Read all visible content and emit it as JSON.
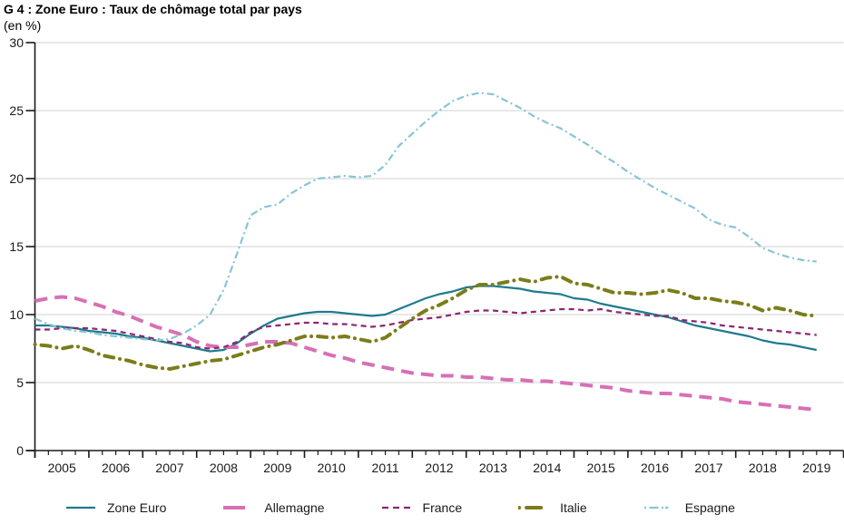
{
  "title": "G 4 : Zone Euro : Taux de chômage total par pays",
  "subtitle": "(en %)",
  "chart_data": {
    "type": "line",
    "title": "G 4 : Zone Euro : Taux de chômage total par pays",
    "ylabel": "(en %)",
    "ylim": [
      0,
      30
    ],
    "y_ticks": [
      0,
      5,
      10,
      15,
      20,
      25,
      30
    ],
    "x_range": [
      2005,
      2020
    ],
    "x_tick_years": [
      2005,
      2006,
      2007,
      2008,
      2009,
      2010,
      2011,
      2012,
      2013,
      2014,
      2015,
      2016,
      2017,
      2018,
      2019
    ],
    "x_minor_tick_step": 0.25,
    "x_start": 2005.0,
    "x_step": 0.25,
    "grid": true,
    "legend_position": "bottom",
    "colors": {
      "grid": "#d9d9d9",
      "axis": "#1a1a1a",
      "zone_euro": "#1e7b8d",
      "allemagne": "#d770b5",
      "france": "#8f2472",
      "italie": "#7c7c1a",
      "espagne": "#89c4d8"
    },
    "series": [
      {
        "name": "Zone Euro",
        "color": "#1e7b8d",
        "style": "solid",
        "width": 2.2,
        "values": [
          9.2,
          9.2,
          9.1,
          9.0,
          8.8,
          8.7,
          8.6,
          8.4,
          8.3,
          8.1,
          7.9,
          7.7,
          7.5,
          7.3,
          7.4,
          7.9,
          8.6,
          9.2,
          9.7,
          9.9,
          10.1,
          10.2,
          10.2,
          10.1,
          10.0,
          9.9,
          10.0,
          10.4,
          10.8,
          11.2,
          11.5,
          11.7,
          12.0,
          12.1,
          12.1,
          12.0,
          11.9,
          11.7,
          11.6,
          11.5,
          11.2,
          11.1,
          10.8,
          10.6,
          10.4,
          10.2,
          10.0,
          9.8,
          9.5,
          9.2,
          9.0,
          8.8,
          8.6,
          8.4,
          8.1,
          7.9,
          7.8,
          7.6,
          7.4
        ]
      },
      {
        "name": "Allemagne",
        "color": "#d770b5",
        "style": "long-dash",
        "width": 4,
        "values": [
          11.0,
          11.2,
          11.3,
          11.2,
          10.9,
          10.6,
          10.2,
          9.9,
          9.5,
          9.1,
          8.8,
          8.5,
          8.0,
          7.7,
          7.6,
          7.6,
          7.8,
          8.0,
          8.0,
          7.9,
          7.6,
          7.3,
          7.0,
          6.8,
          6.5,
          6.3,
          6.1,
          5.9,
          5.7,
          5.6,
          5.5,
          5.5,
          5.4,
          5.4,
          5.3,
          5.2,
          5.2,
          5.1,
          5.1,
          5.0,
          4.9,
          4.8,
          4.7,
          4.6,
          4.4,
          4.3,
          4.2,
          4.2,
          4.1,
          4.0,
          3.9,
          3.8,
          3.6,
          3.5,
          3.4,
          3.3,
          3.2,
          3.1,
          3.0
        ]
      },
      {
        "name": "France",
        "color": "#8f2472",
        "style": "short-dash",
        "width": 2.2,
        "values": [
          8.9,
          8.9,
          9.0,
          9.0,
          9.0,
          8.9,
          8.8,
          8.6,
          8.4,
          8.2,
          8.0,
          7.9,
          7.6,
          7.5,
          7.6,
          8.0,
          8.7,
          9.1,
          9.2,
          9.3,
          9.4,
          9.4,
          9.3,
          9.3,
          9.2,
          9.1,
          9.2,
          9.4,
          9.6,
          9.7,
          9.8,
          10.0,
          10.2,
          10.3,
          10.3,
          10.2,
          10.1,
          10.2,
          10.3,
          10.4,
          10.4,
          10.3,
          10.4,
          10.2,
          10.1,
          10.0,
          9.9,
          9.9,
          9.6,
          9.5,
          9.4,
          9.2,
          9.1,
          9.0,
          8.9,
          8.8,
          8.7,
          8.6,
          8.5
        ]
      },
      {
        "name": "Italie",
        "color": "#7c7c1a",
        "style": "dot-dash",
        "width": 4,
        "values": [
          7.8,
          7.7,
          7.5,
          7.7,
          7.4,
          7.0,
          6.8,
          6.6,
          6.3,
          6.1,
          6.0,
          6.2,
          6.4,
          6.6,
          6.7,
          7.0,
          7.3,
          7.6,
          7.8,
          8.1,
          8.4,
          8.4,
          8.3,
          8.4,
          8.2,
          8.0,
          8.3,
          9.0,
          9.7,
          10.3,
          10.7,
          11.2,
          11.8,
          12.2,
          12.2,
          12.4,
          12.6,
          12.4,
          12.7,
          12.8,
          12.3,
          12.2,
          11.9,
          11.6,
          11.6,
          11.5,
          11.6,
          11.8,
          11.6,
          11.2,
          11.2,
          11.0,
          10.9,
          10.7,
          10.3,
          10.5,
          10.3,
          10.0,
          9.9
        ]
      },
      {
        "name": "Espagne",
        "color": "#89c4d8",
        "style": "dash-dot",
        "width": 2.2,
        "values": [
          9.7,
          9.3,
          9.0,
          8.8,
          8.7,
          8.5,
          8.4,
          8.3,
          8.2,
          8.1,
          8.2,
          8.6,
          9.2,
          10.0,
          11.8,
          14.5,
          17.3,
          17.9,
          18.1,
          18.9,
          19.5,
          20.0,
          20.1,
          20.2,
          20.1,
          20.2,
          21.0,
          22.4,
          23.3,
          24.2,
          25.0,
          25.7,
          26.1,
          26.3,
          26.2,
          25.7,
          25.2,
          24.6,
          24.1,
          23.7,
          23.1,
          22.5,
          21.8,
          21.2,
          20.5,
          19.9,
          19.3,
          18.8,
          18.3,
          17.8,
          17.0,
          16.6,
          16.4,
          15.7,
          14.9,
          14.5,
          14.2,
          14.0,
          13.9
        ]
      }
    ]
  }
}
